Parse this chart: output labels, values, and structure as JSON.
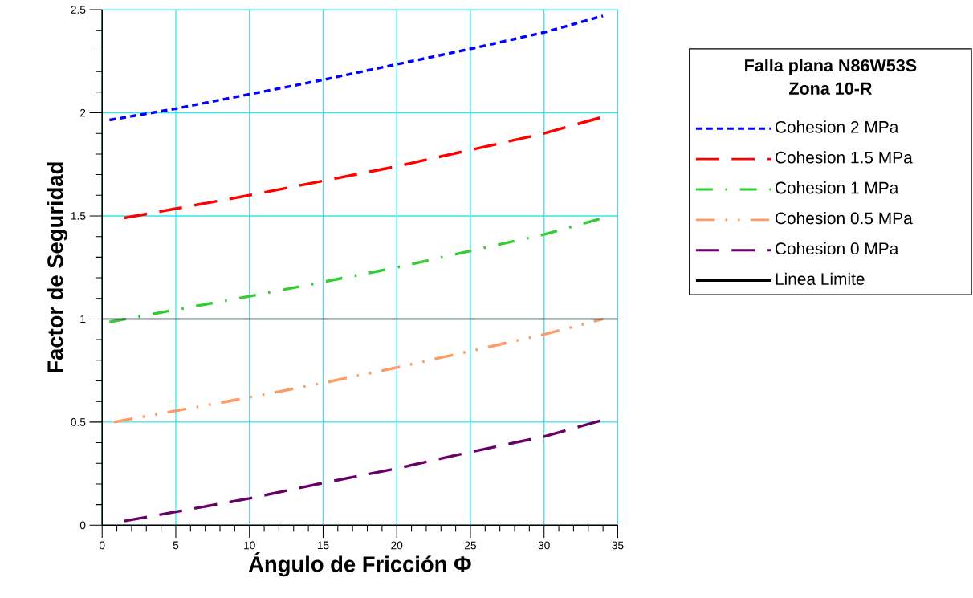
{
  "chart_data": {
    "type": "line",
    "xlabel": "Ángulo de Fricción Φ",
    "ylabel": "Factor de Seguridad",
    "legend_title": "Falla plana N86W53S\nZona 10-R",
    "xlim": [
      0,
      35
    ],
    "ylim": [
      0,
      2.5
    ],
    "xticks": [
      0,
      5,
      10,
      15,
      20,
      25,
      30,
      35
    ],
    "yticks": [
      0,
      0.5,
      1,
      1.5,
      2,
      2.5
    ],
    "grid": true,
    "legend": "right",
    "series": [
      {
        "name": "Cohesion 2 MPa",
        "color": "#0000ff",
        "line_style": "dotted",
        "x": [
          0.5,
          5,
          10,
          15,
          20,
          25,
          30,
          34
        ],
        "values": [
          1.965,
          2.02,
          2.09,
          2.16,
          2.235,
          2.31,
          2.39,
          2.47
        ]
      },
      {
        "name": "Cohesion 1.5 MPa",
        "color": "#ff0000",
        "line_style": "dashed",
        "x": [
          1.5,
          5,
          10,
          15,
          20,
          25,
          30,
          34
        ],
        "values": [
          1.49,
          1.535,
          1.6,
          1.67,
          1.74,
          1.82,
          1.9,
          1.98
        ]
      },
      {
        "name": "Cohesion 1 MPa",
        "color": "#33cc33",
        "line_style": "dashdot",
        "x": [
          0.5,
          5,
          10,
          15,
          20,
          25,
          30,
          34
        ],
        "values": [
          0.985,
          1.045,
          1.11,
          1.18,
          1.25,
          1.33,
          1.41,
          1.49
        ]
      },
      {
        "name": "Cohesion 0.5 MPa",
        "color": "#ff9966",
        "line_style": "dashdotdot",
        "x": [
          0.8,
          5,
          10,
          15,
          20,
          25,
          30,
          34
        ],
        "values": [
          0.5,
          0.555,
          0.62,
          0.69,
          0.765,
          0.845,
          0.925,
          1.0
        ]
      },
      {
        "name": "Cohesion 0 MPa",
        "color": "#660066",
        "line_style": "dashed",
        "x": [
          1.5,
          5,
          10,
          15,
          20,
          25,
          30,
          34
        ],
        "values": [
          0.02,
          0.065,
          0.13,
          0.205,
          0.275,
          0.355,
          0.43,
          0.51
        ]
      }
    ],
    "ref_lines": [
      {
        "axis": "y",
        "value": 1,
        "label": "Linea Limite",
        "color": "#000000",
        "line_style": "solid"
      }
    ]
  }
}
